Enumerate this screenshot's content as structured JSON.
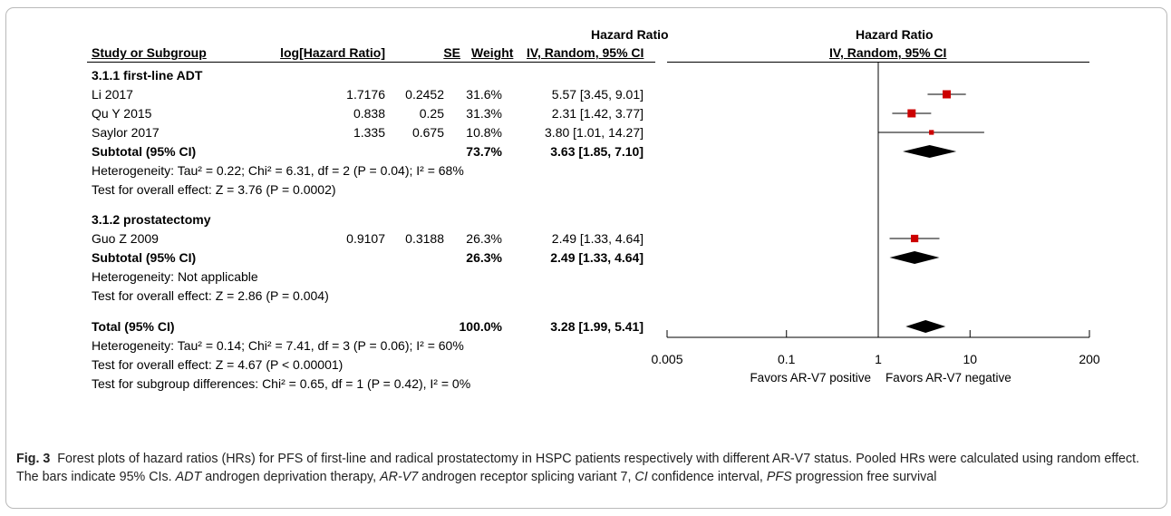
{
  "headers": {
    "hr_group_left": "Hazard Ratio",
    "study": "Study or Subgroup",
    "loghr": "log[Hazard Ratio]",
    "se": "SE",
    "weight": "Weight",
    "ci_left": "IV, Random, 95% CI",
    "hr_group_right": "Hazard Ratio",
    "ci_right": "IV, Random, 95% CI"
  },
  "groups": [
    {
      "title": "3.1.1 first-line ADT",
      "studies": [
        {
          "name": "Li 2017",
          "loghr": "1.7176",
          "se": "0.2452",
          "weight": "31.6%",
          "ci": "5.57 [3.45, 9.01]"
        },
        {
          "name": "Qu Y 2015",
          "loghr": "0.838",
          "se": "0.25",
          "weight": "31.3%",
          "ci": "2.31 [1.42, 3.77]"
        },
        {
          "name": "Saylor 2017",
          "loghr": "1.335",
          "se": "0.675",
          "weight": "10.8%",
          "ci": "3.80 [1.01, 14.27]"
        }
      ],
      "subtotal": {
        "label": "Subtotal (95% CI)",
        "weight": "73.7%",
        "ci": "3.63 [1.85, 7.10]"
      },
      "heterogeneity": "Heterogeneity: Tau² = 0.22; Chi² = 6.31, df = 2 (P = 0.04); I² = 68%",
      "overall": "Test for overall effect: Z = 3.76 (P = 0.0002)"
    },
    {
      "title": "3.1.2 prostatectomy",
      "studies": [
        {
          "name": "Guo Z 2009",
          "loghr": "0.9107",
          "se": "0.3188",
          "weight": "26.3%",
          "ci": "2.49 [1.33, 4.64]"
        }
      ],
      "subtotal": {
        "label": "Subtotal (95% CI)",
        "weight": "26.3%",
        "ci": "2.49 [1.33, 4.64]"
      },
      "heterogeneity": "Heterogeneity: Not applicable",
      "overall": "Test for overall effect: Z = 2.86 (P = 0.004)"
    }
  ],
  "total": {
    "label": "Total (95% CI)",
    "weight": "100.0%",
    "ci": "3.28 [1.99, 5.41]",
    "heterogeneity": "Heterogeneity: Tau² = 0.14; Chi² = 7.41, df = 3 (P = 0.06); I² = 60%",
    "overall": "Test for overall effect: Z = 4.67 (P < 0.00001)",
    "subgroup_diff": "Test for subgroup differences: Chi² = 0.65, df = 1 (P = 0.42), I² = 0%"
  },
  "axis": {
    "ticks": [
      "0.005",
      "0.1",
      "1",
      "10",
      "200"
    ],
    "favors_left": "Favors AR-V7 positive",
    "favors_right": "Favors AR-V7 negative"
  },
  "caption": {
    "label": "Fig. 3",
    "text_a": "Forest plots of hazard ratios (HRs) for PFS of first-line and radical prostatectomy in HSPC patients respectively with different AR-V7 status. Pooled HRs were calculated using random effect. The bars indicate 95% CIs. ",
    "abbr1": "ADT",
    "text_b": " androgen deprivation therapy, ",
    "abbr2": "AR-V7",
    "text_c": " androgen receptor splicing variant 7, ",
    "abbr3": "CI",
    "text_d": " confidence interval, ",
    "abbr4": "PFS",
    "text_e": " progression free survival"
  },
  "chart_data": {
    "type": "forest",
    "scale": "log",
    "xlim": [
      0.005,
      200
    ],
    "ticks": [
      0.005,
      0.1,
      1,
      10,
      200
    ],
    "null_line": 1,
    "colors": {
      "study": "#cc0000",
      "diamond": "#000000"
    },
    "studies": [
      {
        "name": "Li 2017",
        "hr": 5.57,
        "lo": 3.45,
        "hi": 9.01,
        "weight": 31.6
      },
      {
        "name": "Qu Y 2015",
        "hr": 2.31,
        "lo": 1.42,
        "hi": 3.77,
        "weight": 31.3
      },
      {
        "name": "Saylor 2017",
        "hr": 3.8,
        "lo": 1.01,
        "hi": 14.27,
        "weight": 10.8
      },
      {
        "name": "Guo Z 2009",
        "hr": 2.49,
        "lo": 1.33,
        "hi": 4.64,
        "weight": 26.3
      }
    ],
    "diamonds": [
      {
        "name": "Subtotal 3.1.1",
        "hr": 3.63,
        "lo": 1.85,
        "hi": 7.1
      },
      {
        "name": "Subtotal 3.1.2",
        "hr": 2.49,
        "lo": 1.33,
        "hi": 4.64
      },
      {
        "name": "Total",
        "hr": 3.28,
        "lo": 1.99,
        "hi": 5.41
      }
    ]
  }
}
